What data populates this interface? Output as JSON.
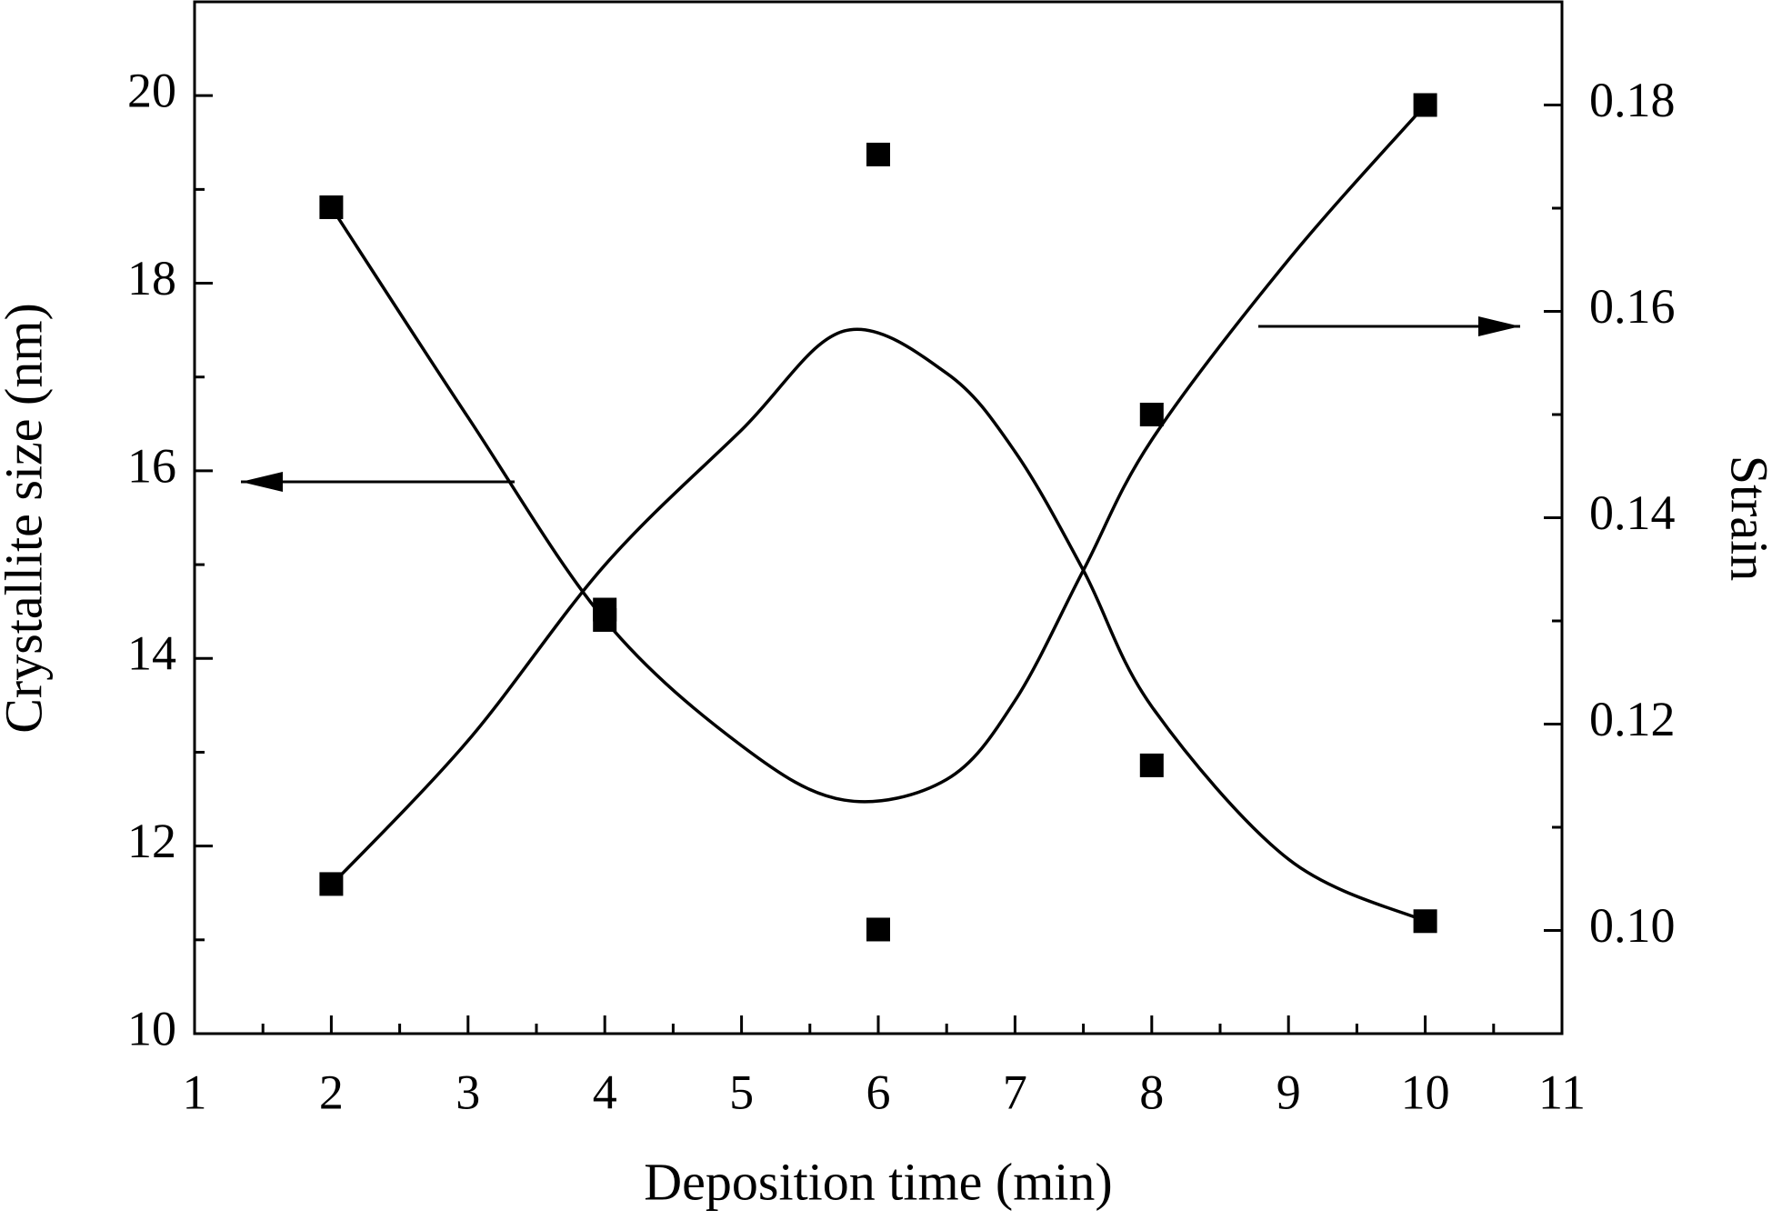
{
  "chart_data": {
    "type": "scatter",
    "x_label": "Deposition time (min)",
    "y_label": "Crystallite size (nm)",
    "y2_label": "Strain",
    "xlim": [
      1,
      11
    ],
    "xticks": [
      1,
      2,
      3,
      4,
      5,
      6,
      7,
      8,
      9,
      10,
      11
    ],
    "ylim": [
      10,
      21
    ],
    "yticks": [
      10,
      12,
      14,
      16,
      18,
      20
    ],
    "y2lim": [
      0.09,
      0.19
    ],
    "y2ticks": [
      {
        "value": 0.1,
        "label": "0.10"
      },
      0.12,
      0.14,
      0.16,
      0.18
    ],
    "color": "#000000",
    "series": [
      {
        "style": "markers",
        "x": [
          2,
          4,
          6,
          8,
          10
        ],
        "values": [
          18.81,
          14.41,
          11.11,
          16.6,
          19.9
        ]
      },
      {
        "style": "markers",
        "axis": "y2",
        "x": [
          2,
          4,
          6,
          8,
          10
        ],
        "values": [
          0.1045,
          0.1311,
          0.1752,
          0.116,
          0.1009
        ]
      },
      {
        "style": "smooth",
        "x": [
          2,
          3,
          4,
          5,
          5.75,
          6.5,
          7,
          7.5,
          8,
          9,
          10
        ],
        "values": [
          18.81,
          16.57,
          14.41,
          13.07,
          12.49,
          12.71,
          13.55,
          14.94,
          16.33,
          18.25,
          19.9
        ]
      },
      {
        "style": "smooth",
        "axis": "y2",
        "x": [
          2,
          3,
          4,
          5,
          5.75,
          6.5,
          7,
          7.5,
          8,
          9,
          10
        ],
        "values": [
          0.1044,
          0.1184,
          0.1354,
          0.1485,
          0.1581,
          0.154,
          0.1464,
          0.1349,
          0.1217,
          0.1069,
          0.1009
        ]
      }
    ]
  }
}
